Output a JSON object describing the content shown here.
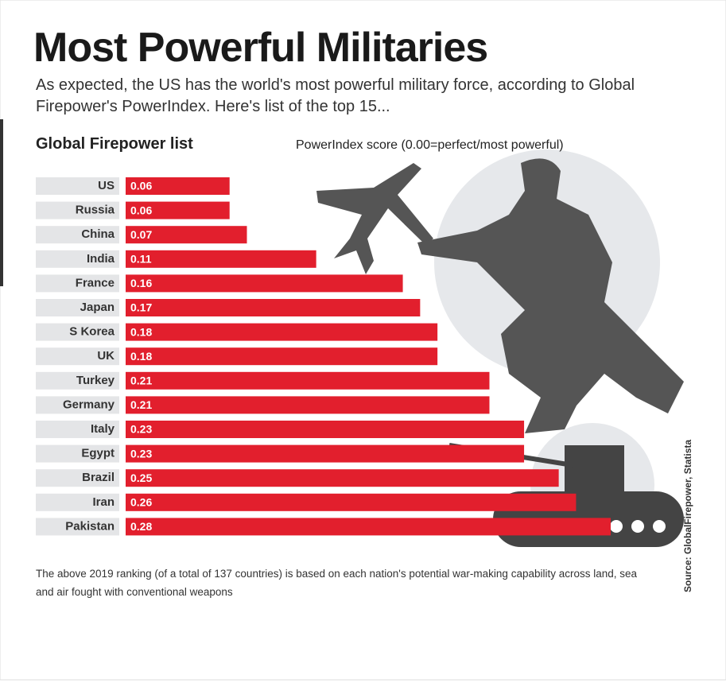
{
  "chart_data": {
    "type": "bar",
    "orientation": "horizontal",
    "title": "Most Powerful Militaries",
    "subtitle": "As expected, the US has the world's most powerful military force, according to Global Firepower's PowerIndex. Here's list of the top 15...",
    "chart_label": "Global Firepower list",
    "value_axis_label": "PowerIndex score (0.00=perfect/most powerful)",
    "categories": [
      "US",
      "Russia",
      "China",
      "India",
      "France",
      "Japan",
      "S Korea",
      "UK",
      "Turkey",
      "Germany",
      "Italy",
      "Egypt",
      "Brazil",
      "Iran",
      "Pakistan"
    ],
    "values": [
      0.06,
      0.06,
      0.07,
      0.11,
      0.16,
      0.17,
      0.18,
      0.18,
      0.21,
      0.21,
      0.23,
      0.23,
      0.25,
      0.26,
      0.28
    ],
    "color": "#e21f2d",
    "footnote": "The above 2019 ranking (of a total of 137 countries) is based on each nation's potential war-making capability across land, sea and air fought with conventional weapons",
    "source": "Source: GlobalFirepower, Statista"
  }
}
